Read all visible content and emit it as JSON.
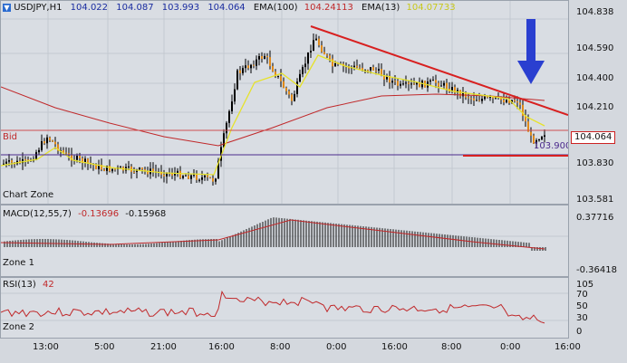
{
  "header": {
    "symbol": "USDJPY,H1",
    "open": "104.022",
    "high": "104.087",
    "low": "103.993",
    "close": "104.064",
    "ema100_label": "EMA(100)",
    "ema100_value": "104.24113",
    "ema13_label": "EMA(13)",
    "ema13_value": "104.07733"
  },
  "main": {
    "bid_label": "Bid",
    "zone_label": "Chart Zone",
    "price_tag": "104.064",
    "level_tag": "103.900",
    "price_axis": [
      "104.838",
      "104.590",
      "104.400",
      "104.210",
      "103.830",
      "103.581"
    ]
  },
  "macd": {
    "label": "MACD(12,55,7)",
    "value1": "-0.13696",
    "value2": "-0.15968",
    "zone_label": "Zone 1",
    "axis": [
      "0.37716",
      "-0.36418"
    ]
  },
  "rsi": {
    "label": "RSI(13)",
    "value": "42",
    "zone_label": "Zone 2",
    "axis": [
      "105",
      "70",
      "50",
      "30",
      "0"
    ]
  },
  "time_axis": [
    "13:00",
    "5:00",
    "21:00",
    "16:00",
    "8:00",
    "0:00",
    "16:00",
    "8:00",
    "0:00",
    "16:00"
  ],
  "colors": {
    "background": "#d9dde3",
    "candle_up": "#000000",
    "candle_down": "#e08a1a",
    "ema100": "#c0282a",
    "ema13": "#e6e22a",
    "trendline": "#d82020",
    "purple_line": "#4b2a8c",
    "bid_line": "#d05050",
    "arrow": "#2a3fd0",
    "header_blue": "#1a2ca0",
    "header_red": "#c0282a",
    "header_yellow": "#d8d81a",
    "macd_signal": "#c0282a"
  },
  "icons": {
    "symbol_icon": "arrow-down-icon",
    "annotation_arrow": "down-arrow-icon"
  }
}
